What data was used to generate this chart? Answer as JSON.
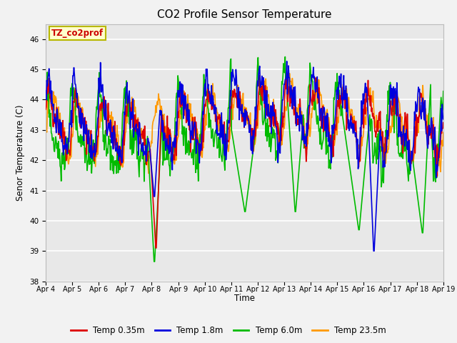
{
  "title": "CO2 Profile Sensor Temperature",
  "ylabel": "Senor Temperature (C)",
  "xlabel": "Time",
  "annotation_text": "TZ_co2prof",
  "annotation_box_color": "#ffffcc",
  "annotation_text_color": "#cc0000",
  "annotation_border_color": "#b8b800",
  "ylim": [
    38.0,
    46.5
  ],
  "yticks": [
    38.0,
    39.0,
    40.0,
    41.0,
    42.0,
    43.0,
    44.0,
    45.0,
    46.0
  ],
  "xtick_labels": [
    "Apr 4",
    "Apr 5",
    "Apr 6",
    "Apr 7",
    "Apr 8",
    "Apr 9",
    "Apr 10",
    "Apr 11",
    "Apr 12",
    "Apr 13",
    "Apr 14",
    "Apr 15",
    "Apr 16",
    "Apr 17",
    "Apr 18",
    "Apr 19"
  ],
  "colors": {
    "Temp 0.35m": "#dd0000",
    "Temp 1.8m": "#0000dd",
    "Temp 6.0m": "#00bb00",
    "Temp 23.5m": "#ff9900"
  },
  "legend_labels": [
    "Temp 0.35m",
    "Temp 1.8m",
    "Temp 6.0m",
    "Temp 23.5m"
  ],
  "grid_color": "#ffffff",
  "plot_bg_color": "#e8e8e8",
  "fig_bg_color": "#f2f2f2",
  "n_points": 720,
  "seed": 42
}
